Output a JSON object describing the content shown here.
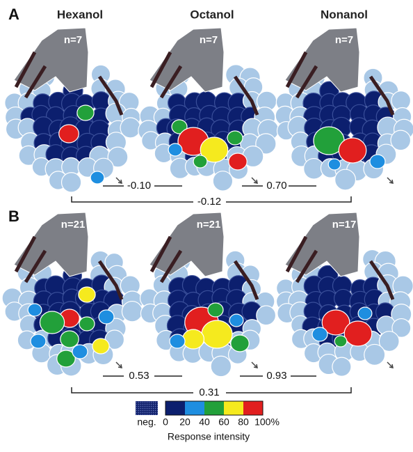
{
  "panels": [
    {
      "label": "A",
      "maps": [
        {
          "odor": "Hexanol",
          "n": "n=7"
        },
        {
          "odor": "Octanol",
          "n": "n=7"
        },
        {
          "odor": "Nonanol",
          "n": "n=7"
        }
      ],
      "correlations": [
        "-0.10",
        "0.70",
        "-0.12"
      ]
    },
    {
      "label": "B",
      "maps": [
        {
          "n": "n=21"
        },
        {
          "n": "n=21"
        },
        {
          "n": "n=17"
        }
      ],
      "correlations": [
        "0.53",
        "0.93",
        "0.31"
      ]
    }
  ],
  "legend": {
    "neg": "neg.",
    "ticks": [
      "0",
      "20",
      "40",
      "60",
      "80",
      "100%"
    ],
    "title": "Response intensity"
  }
}
